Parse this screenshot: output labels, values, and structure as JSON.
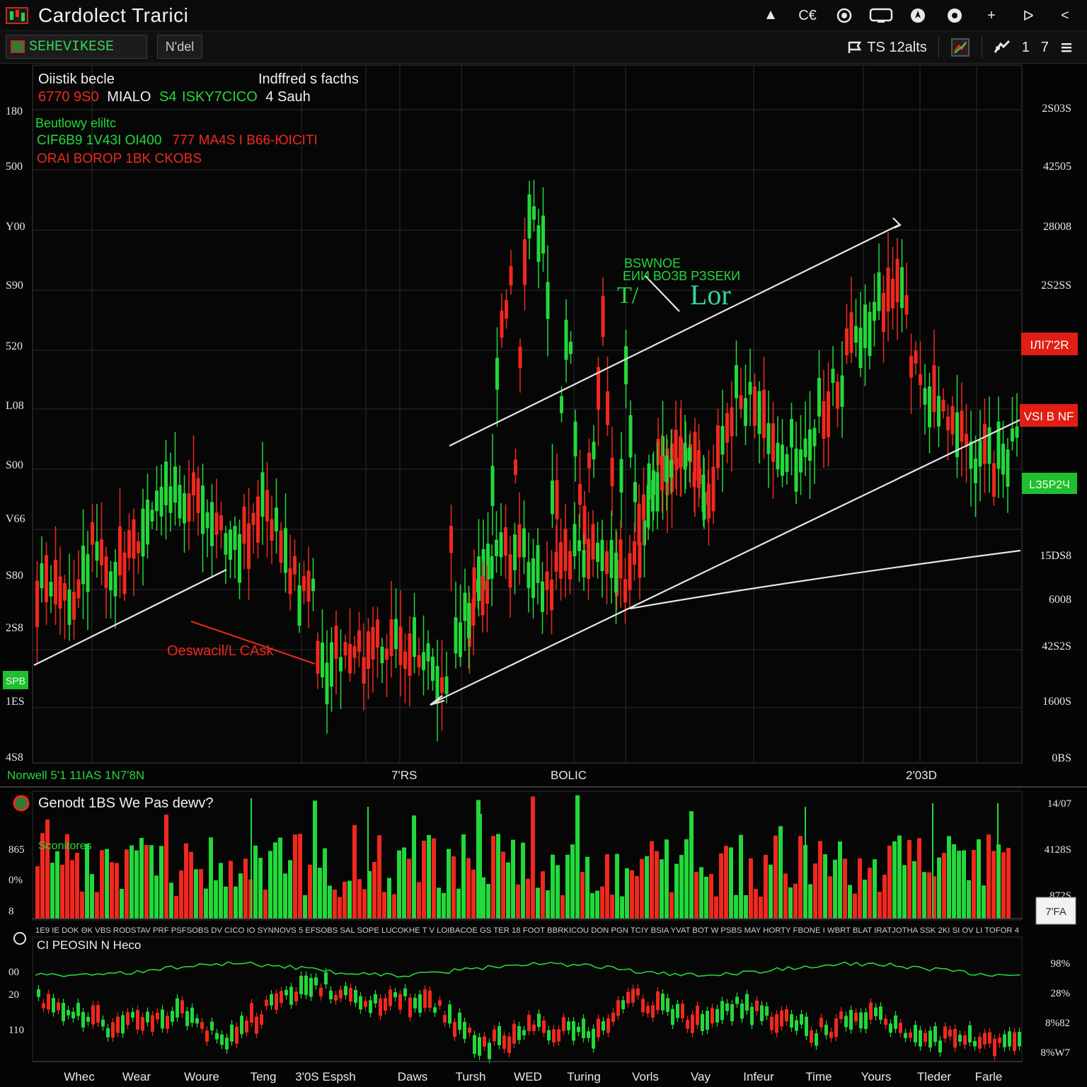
{
  "window": {
    "title": "Cardolect Trarici",
    "icons": [
      "up-arrow-icon",
      "record-icon",
      "monitor-icon",
      "compass-icon",
      "target-icon",
      "plus-icon",
      "play-icon",
      "back-icon"
    ],
    "crypto_text": "C€",
    "plus_text": "+",
    "play_text": "ᐅ",
    "back_text": "<"
  },
  "toolbar": {
    "symbol": "SEHEVIKESE",
    "timeframe": "N'del",
    "quote_text": "ТЅ 12alts",
    "counter_a": "1",
    "counter_b": "7"
  },
  "main_panel": {
    "legend_title": "Oiistik becle",
    "legend_right": "Indffred s facths",
    "legend_line1_red": "6770 9S0",
    "legend_line1_white": "MIALO",
    "legend_line1_green": "S4 ",
    "legend_line1_green2": "ISKY7CICO",
    "legend_line1_white2": "4 Sauh",
    "legend_sub": "Beutlowy eliltc",
    "legend_line3_green": "CIF6B9 1V43I OI400",
    "legend_line3_red": "777 MA4S I B66-ЮICITI",
    "legend_line4_red": "ORAI BOROP 1BK CKOBS",
    "annot_upper_small": "BSWNOE",
    "annot_upper_line": "ЕИИ ВОЗВ РЗSЕКИ",
    "annot_upper_big": "Lor",
    "annot_upper_prefix": "T/",
    "annot_lower": "Oeswacil/L CAsk",
    "y_left": [
      "180",
      "500",
      "Y00",
      "S90",
      "520",
      "L08",
      "S00",
      "V66",
      "S80",
      "2S8",
      "1ES",
      "4S8"
    ],
    "y_right": [
      "2S03S",
      "42505",
      "28008",
      "2S2SS",
      "6008",
      "42S2S",
      "1600S",
      "15DS8",
      "0BS"
    ],
    "tag_red_upper": "ІЛІ7'2R",
    "tag_red_lower": "VSI B NF",
    "tag_green": "LЗ5Р2Ч",
    "tag_left_green": "SPB",
    "x_labels": [
      "Norwell 5'1 11IAS 1N7'8N",
      "7'RS",
      "BOLIC",
      "2'03D"
    ]
  },
  "volume_panel": {
    "title": "Genodt 1BS We Pas dewv?",
    "sub": "Sconitores",
    "y_left": [
      "865",
      "0%",
      "8"
    ],
    "y_right": [
      "14/07",
      "4128S",
      "872S"
    ],
    "tag": "7'FA"
  },
  "ticker": {
    "text": "1E9 IE DOK ΘK VBS RODSTAV PRF PSFSOBS DV CICO IO SYNNOVS 5 EFSOBS SAL SOPE LUCOKHE T V LOIBACOE GS TER 18 FOOT BBRKICOU DON PGN TCIY BSIA YVAT BOT W PSBS MAY HORTY FBONE I WBRT BLAT IRATJOTHA SSK 2KI SI OV LI TOFOR 4"
  },
  "osc_panel": {
    "title": "CI PEOSIN N Heco",
    "y_left": [
      "00",
      "20",
      "110"
    ],
    "y_right": [
      "98%",
      "28%",
      "8%82",
      "8%W7"
    ],
    "x_labels": [
      "Whec",
      "Wear",
      "Woure",
      "Teng",
      "3'0S Espsh",
      "Daws",
      "Tursh",
      "WED",
      "Turing",
      "Vorls",
      "Vay",
      "Infeur",
      "Time",
      "Yours",
      "Tleder",
      "Farle"
    ]
  },
  "colors": {
    "up": "#22d83a",
    "down": "#f0281e",
    "grid": "#2c2c2c",
    "trend": "#e6e6e6",
    "bg": "#050505"
  }
}
